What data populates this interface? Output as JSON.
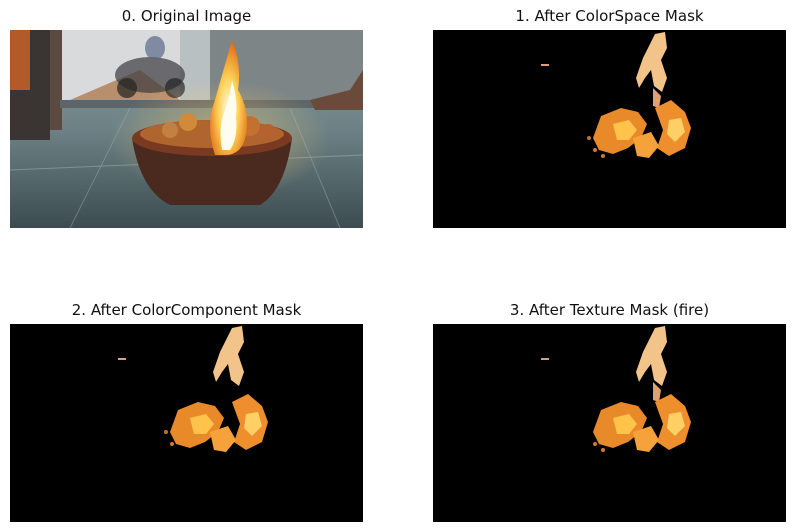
{
  "panels": [
    {
      "title": "0. Original Image"
    },
    {
      "title": "1. After ColorSpace Mask"
    },
    {
      "title": "2. After ColorComponent Mask"
    },
    {
      "title": "3. After Texture Mask (fire)"
    }
  ]
}
